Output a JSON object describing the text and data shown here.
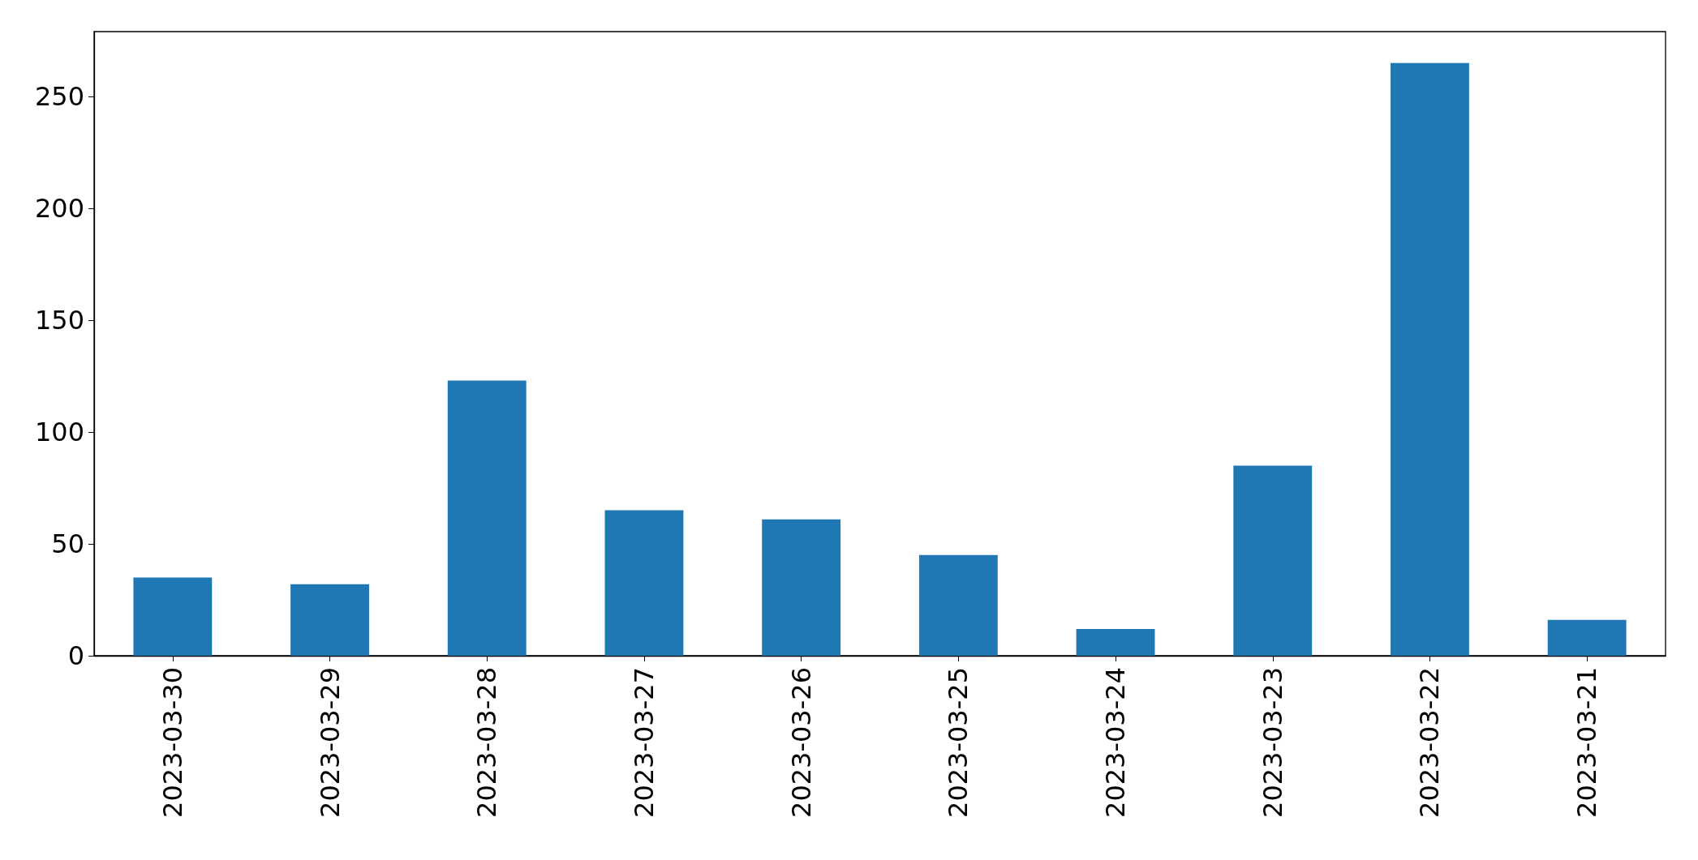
{
  "chart_data": {
    "type": "bar",
    "categories": [
      "2023-03-30",
      "2023-03-29",
      "2023-03-28",
      "2023-03-27",
      "2023-03-26",
      "2023-03-25",
      "2023-03-24",
      "2023-03-23",
      "2023-03-22",
      "2023-03-21"
    ],
    "values": [
      35,
      32,
      123,
      65,
      61,
      45,
      12,
      85,
      265,
      16
    ],
    "color": "#1f77b4",
    "ylim": [
      0,
      279
    ],
    "yticks": [
      0,
      50,
      100,
      150,
      200,
      250
    ]
  }
}
